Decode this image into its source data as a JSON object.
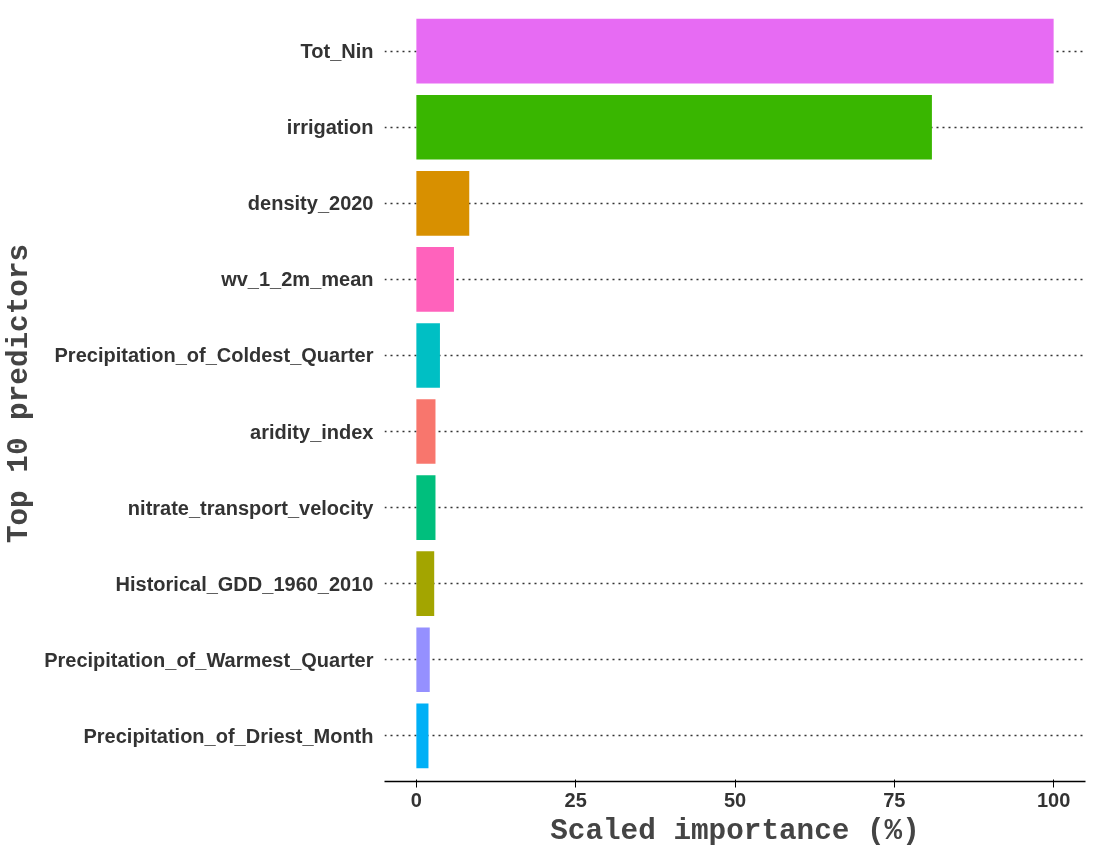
{
  "chart_data": {
    "type": "bar",
    "orientation": "horizontal",
    "xlabel": "Scaled importance (%)",
    "ylabel": "Top 10 predictors",
    "categories": [
      "Tot_Nin",
      "irrigation",
      "density_2020",
      "wv_1_2m_mean",
      "Precipitation_of_Coldest_Quarter",
      "aridity_index",
      "nitrate_transport_velocity",
      "Historical_GDD_1960_2010",
      "Precipitation_of_Warmest_Quarter",
      "Precipitation_of_Driest_Month"
    ],
    "values": [
      100,
      80.9,
      8.3,
      5.9,
      3.7,
      3.0,
      3.0,
      2.8,
      2.1,
      1.9
    ],
    "colors": [
      "#e76bf3",
      "#39b600",
      "#d89000",
      "#ff62bc",
      "#00bfc4",
      "#f8766d",
      "#00bf7d",
      "#a3a500",
      "#9590ff",
      "#00b0f6"
    ],
    "xlim": [
      -5,
      105
    ],
    "xticks": [
      0,
      25,
      50,
      75,
      100
    ],
    "grid": "y",
    "line_style": "dotted"
  }
}
